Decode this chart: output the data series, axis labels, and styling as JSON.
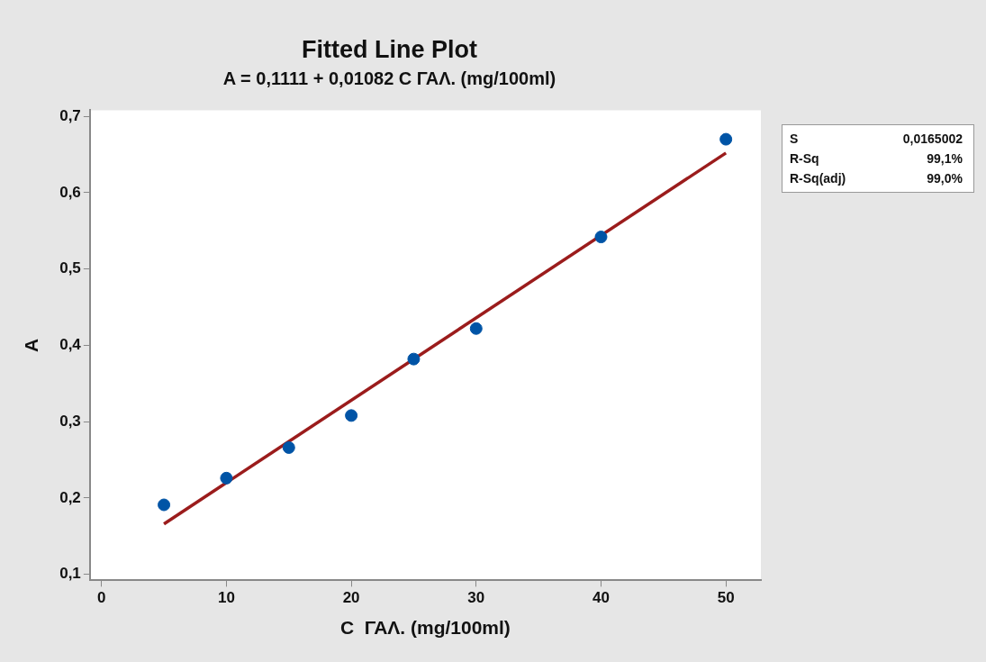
{
  "chart_data": {
    "type": "scatter",
    "title": "Fitted Line Plot",
    "subtitle": "A = 0,1111 + 0,01082 C ΓΑΛ. (mg/100ml)",
    "xlabel": "C  ΓΑΛ. (mg/100ml)",
    "ylabel": "A",
    "x": [
      5,
      10,
      15,
      20,
      25,
      30,
      40,
      50
    ],
    "series": [
      {
        "marker": "circle",
        "color": "#0054a6",
        "values": [
          0.191,
          0.226,
          0.266,
          0.308,
          0.382,
          0.422,
          0.542,
          0.67
        ]
      },
      {
        "type": "line",
        "marker": "none",
        "color": "#9b1c1c",
        "x": [
          5,
          50
        ],
        "values": [
          0.166,
          0.652
        ]
      }
    ],
    "xlim": [
      -0.93,
      52.8
    ],
    "xticks": [
      0,
      10,
      20,
      30,
      40,
      50
    ],
    "ylim": [
      0.092,
      0.708
    ],
    "yticks": [
      {
        "value": 0.1,
        "label": "0,1"
      },
      {
        "value": 0.2,
        "label": "0,2"
      },
      {
        "value": 0.3,
        "label": "0,3"
      },
      {
        "value": 0.4,
        "label": "0,4"
      },
      {
        "value": 0.5,
        "label": "0,5"
      },
      {
        "value": 0.6,
        "label": "0,6"
      },
      {
        "value": 0.7,
        "label": "0,7"
      }
    ],
    "annotations": [
      "S 0,0165002",
      "R-Sq 99,1%",
      "R-Sq(adj) 99,0%"
    ],
    "grid": false,
    "legend": false,
    "line_style": "solid"
  }
}
